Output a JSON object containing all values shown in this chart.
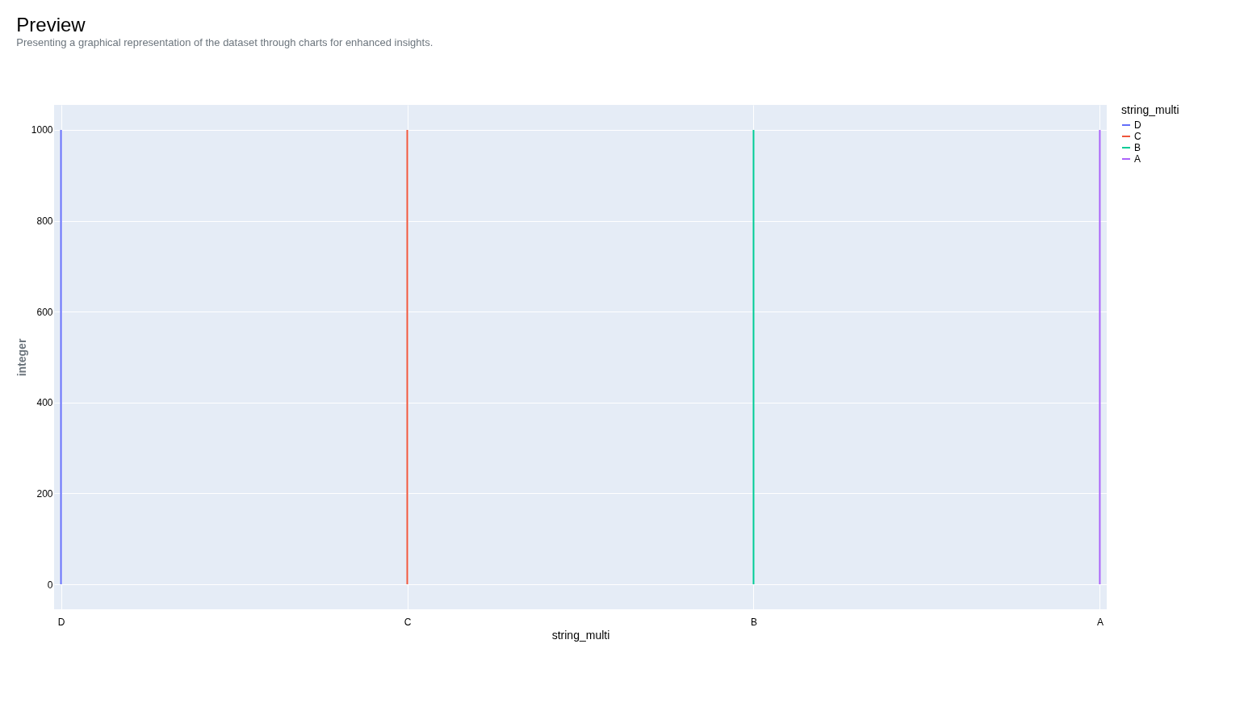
{
  "chart_data": {
    "type": "line",
    "title": "Preview",
    "subtitle": "Presenting a graphical representation of the dataset through charts for enhanced insights.",
    "xlabel": "string_multi",
    "ylabel": "integer",
    "legend_title": "string_multi",
    "categories": [
      "D",
      "C",
      "B",
      "A"
    ],
    "series": [
      {
        "name": "D",
        "color": "#636efa",
        "x": [
          "D",
          "D"
        ],
        "values": [
          0,
          1000
        ]
      },
      {
        "name": "C",
        "color": "#ef553b",
        "x": [
          "C",
          "C"
        ],
        "values": [
          0,
          1000
        ]
      },
      {
        "name": "B",
        "color": "#00cc96",
        "x": [
          "B",
          "B"
        ],
        "values": [
          0,
          1000
        ]
      },
      {
        "name": "A",
        "color": "#ab63fa",
        "x": [
          "A",
          "A"
        ],
        "values": [
          0,
          1000
        ]
      }
    ],
    "ylim": [
      -55,
      1055
    ],
    "yticks": [
      0,
      200,
      400,
      600,
      800,
      1000
    ],
    "grid": true,
    "legend": "top right",
    "marker": "none",
    "line_style": "solid"
  }
}
